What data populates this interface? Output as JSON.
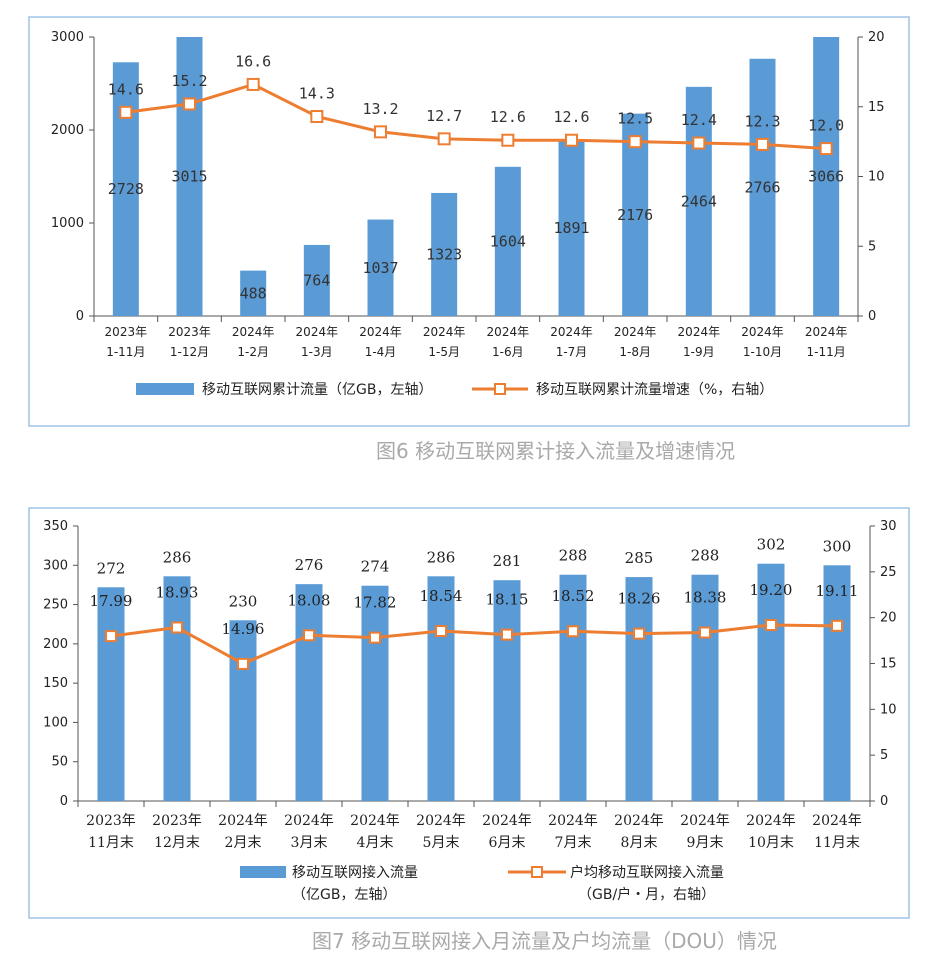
{
  "chart_data": [
    {
      "type": "bar",
      "title": "图6 移动互联网累计接入流量及增速情况",
      "categories": [
        [
          "2023年",
          "1-11月"
        ],
        [
          "2023年",
          "1-12月"
        ],
        [
          "2024年",
          "1-2月"
        ],
        [
          "2024年",
          "1-3月"
        ],
        [
          "2024年",
          "1-4月"
        ],
        [
          "2024年",
          "1-5月"
        ],
        [
          "2024年",
          "1-6月"
        ],
        [
          "2024年",
          "1-7月"
        ],
        [
          "2024年",
          "1-8月"
        ],
        [
          "2024年",
          "1-9月"
        ],
        [
          "2024年",
          "1-10月"
        ],
        [
          "2024年",
          "1-11月"
        ]
      ],
      "series": [
        {
          "name": "移动互联网累计流量（亿GB，左轴）",
          "type": "bar",
          "axis": "left",
          "values": [
            2728,
            3015,
            488,
            764,
            1037,
            1323,
            1604,
            1891,
            2176,
            2464,
            2766,
            3066
          ],
          "labels": [
            "2728",
            "3015",
            "488",
            "764",
            "1037",
            "1323",
            "1604",
            "1891",
            "2176",
            "2464",
            "2766",
            "3066"
          ]
        },
        {
          "name": "移动互联网累计流量增速（%，右轴）",
          "type": "line",
          "axis": "right",
          "values": [
            14.6,
            15.2,
            16.6,
            14.3,
            13.2,
            12.7,
            12.6,
            12.6,
            12.5,
            12.4,
            12.3,
            12.0
          ],
          "labels": [
            "14.6",
            "15.2",
            "16.6",
            "14.3",
            "13.2",
            "12.7",
            "12.6",
            "12.6",
            "12.5",
            "12.4",
            "12.3",
            "12.0"
          ]
        }
      ],
      "ylim_left": [
        0,
        3000
      ],
      "yticks_left": [
        "0",
        "1000",
        "2000",
        "3000"
      ],
      "ylim_right": [
        0,
        20
      ],
      "yticks_right": [
        "0",
        "5",
        "10",
        "15",
        "20"
      ],
      "legend_position": "bottom",
      "colors": {
        "bar": "#5B9BD5",
        "line": "#ED7D31",
        "marker_fill": "#ffffff",
        "frame": "#9DC3E6"
      }
    },
    {
      "type": "bar",
      "title": "图7 移动互联网接入月流量及户均流量（DOU）情况",
      "categories": [
        [
          "2023年",
          "11月末"
        ],
        [
          "2023年",
          "12月末"
        ],
        [
          "2024年",
          "2月末"
        ],
        [
          "2024年",
          "3月末"
        ],
        [
          "2024年",
          "4月末"
        ],
        [
          "2024年",
          "5月末"
        ],
        [
          "2024年",
          "6月末"
        ],
        [
          "2024年",
          "7月末"
        ],
        [
          "2024年",
          "8月末"
        ],
        [
          "2024年",
          "9月末"
        ],
        [
          "2024年",
          "10月末"
        ],
        [
          "2024年",
          "11月末"
        ]
      ],
      "series": [
        {
          "name": "移动互联网接入流量",
          "name_line2": "（亿GB，左轴）",
          "type": "bar",
          "axis": "left",
          "values": [
            272,
            286,
            230,
            276,
            274,
            286,
            281,
            288,
            285,
            288,
            302,
            300
          ],
          "labels": [
            "272",
            "286",
            "230",
            "276",
            "274",
            "286",
            "281",
            "288",
            "285",
            "288",
            "302",
            "300"
          ]
        },
        {
          "name": "户均移动互联网接入流量",
          "name_line2": "（GB/户・月，右轴）",
          "type": "line",
          "axis": "right",
          "values": [
            17.99,
            18.93,
            14.96,
            18.08,
            17.82,
            18.54,
            18.15,
            18.52,
            18.26,
            18.38,
            19.2,
            19.11
          ],
          "labels": [
            "17.99",
            "18.93",
            "14.96",
            "18.08",
            "17.82",
            "18.54",
            "18.15",
            "18.52",
            "18.26",
            "18.38",
            "19.20",
            "19.11"
          ]
        }
      ],
      "ylim_left": [
        0,
        350
      ],
      "yticks_left": [
        "0",
        "50",
        "100",
        "150",
        "200",
        "250",
        "300",
        "350"
      ],
      "ylim_right": [
        0,
        30
      ],
      "yticks_right": [
        "0",
        "5",
        "10",
        "15",
        "20",
        "25",
        "30"
      ],
      "legend_position": "bottom",
      "colors": {
        "bar": "#5B9BD5",
        "line": "#ED7D31",
        "marker_fill": "#ffffff",
        "frame": "#9DC3E6"
      }
    }
  ]
}
